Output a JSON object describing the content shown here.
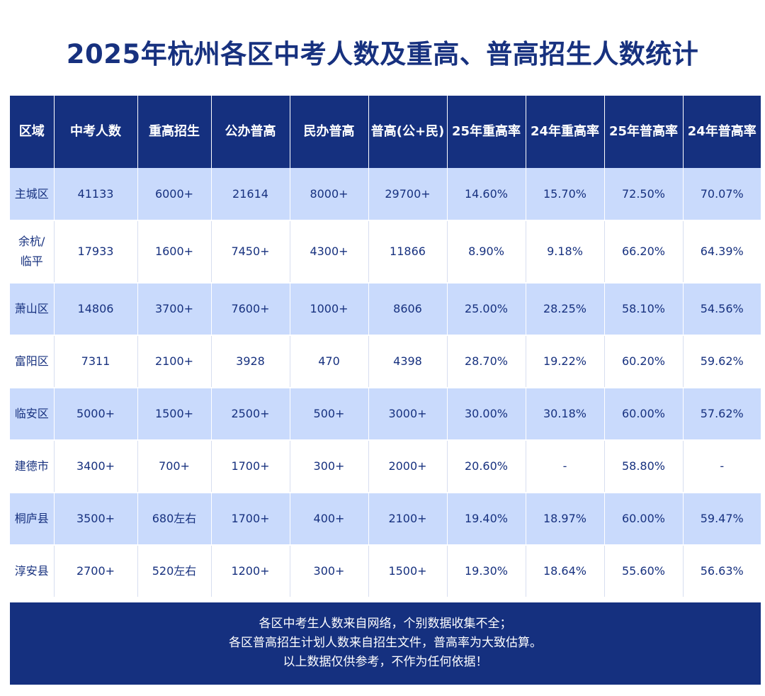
{
  "title": "2025年杭州各区中考人数及重高、普高招生人数统计",
  "table": {
    "headers": [
      "区域",
      "中考人数",
      "重高招生",
      "公办普高",
      "民办普高",
      "普高(公+民)",
      "25年重高率",
      "24年重高率",
      "25年普高率",
      "24年普高率"
    ],
    "rows": [
      [
        "主城区",
        "41133",
        "6000+",
        "21614",
        "8000+",
        "29700+",
        "14.60%",
        "15.70%",
        "72.50%",
        "70.07%"
      ],
      [
        "余杭/\n临平",
        "17933",
        "1600+",
        "7450+",
        "4300+",
        "11866",
        "8.90%",
        "9.18%",
        "66.20%",
        "64.39%"
      ],
      [
        "萧山区",
        "14806",
        "3700+",
        "7600+",
        "1000+",
        "8606",
        "25.00%",
        "28.25%",
        "58.10%",
        "54.56%"
      ],
      [
        "富阳区",
        "7311",
        "2100+",
        "3928",
        "470",
        "4398",
        "28.70%",
        "19.22%",
        "60.20%",
        "59.62%"
      ],
      [
        "临安区",
        "5000+",
        "1500+",
        "2500+",
        "500+",
        "3000+",
        "30.00%",
        "30.18%",
        "60.00%",
        "57.62%"
      ],
      [
        "建德市",
        "3400+",
        "700+",
        "1700+",
        "300+",
        "2000+",
        "20.60%",
        "-",
        "58.80%",
        "-"
      ],
      [
        "桐庐县",
        "3500+",
        "680左右",
        "1700+",
        "400+",
        "2100+",
        "19.40%",
        "18.97%",
        "60.00%",
        "59.47%"
      ],
      [
        "淳安县",
        "2700+",
        "520左右",
        "1200+",
        "300+",
        "1500+",
        "19.30%",
        "18.64%",
        "55.60%",
        "56.63%"
      ]
    ]
  },
  "footer": {
    "lines": [
      "各区中考生人数来自网络，个别数据收集不全；",
      "各区普高招生计划人数来自招生文件，普高率为大致估算。",
      "以上数据仅供参考，不作为任何依据！"
    ]
  },
  "colors": {
    "header_bg": "#15307f",
    "row_blue": "#c9dafc",
    "row_white": "#ffffff",
    "text": "#17317f"
  }
}
